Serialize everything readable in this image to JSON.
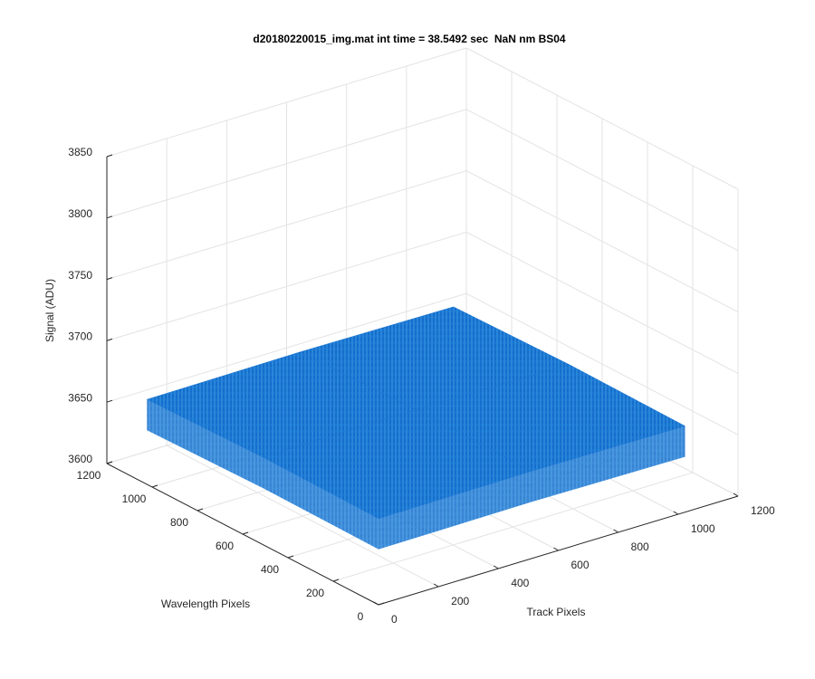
{
  "chart_data": {
    "type": "surface",
    "title": "d20180220015_img.mat int time = 38.5492 sec  NaN nm BS04",
    "xlabel": "Track Pixels",
    "ylabel": "Wavelength Pixels",
    "zlabel": "Signal (ADU)",
    "x": [
      1,
      512,
      1024
    ],
    "y": [
      1,
      512,
      1024
    ],
    "z": [
      [
        3670,
        3671,
        3670
      ],
      [
        3671,
        3672,
        3671
      ],
      [
        3669,
        3670,
        3669
      ]
    ],
    "color": "#1a74d2",
    "xlim": [
      0,
      1200
    ],
    "xticks": [
      0,
      200,
      400,
      600,
      800,
      1000,
      1200
    ],
    "ylim": [
      0,
      1200
    ],
    "yticks": [
      0,
      200,
      400,
      600,
      800,
      1000,
      1200
    ],
    "zlim": [
      3600,
      3850
    ],
    "zticks": [
      3600,
      3650,
      3700,
      3750,
      3800,
      3850
    ],
    "grid": true
  }
}
